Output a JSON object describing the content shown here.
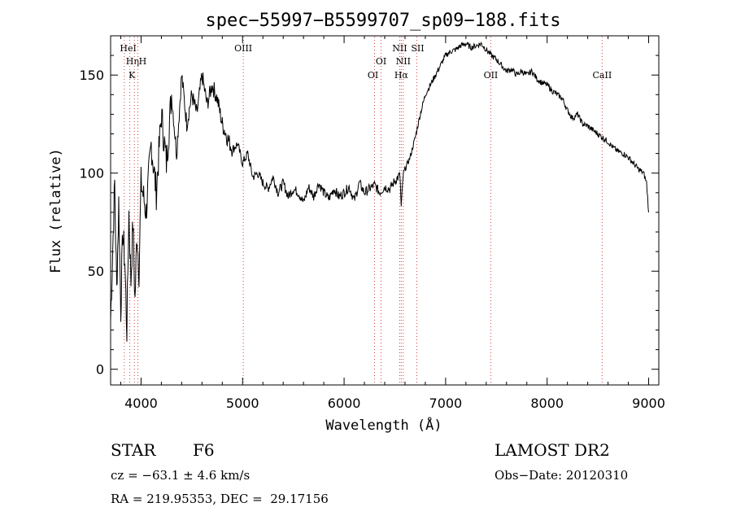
{
  "chart_data": {
    "type": "line",
    "title": "spec−55997−B5599707_sp09−188.fits",
    "xlabel": "Wavelength (Å)",
    "ylabel": "Flux (relative)",
    "xlim": [
      3700,
      9100
    ],
    "ylim": [
      -8,
      170
    ],
    "x_ticks": [
      4000,
      5000,
      6000,
      7000,
      8000,
      9000
    ],
    "x_tick_labels": [
      "4000",
      "5000",
      "6000",
      "7000",
      "8000",
      "9000"
    ],
    "y_ticks": [
      0,
      50,
      100,
      150
    ],
    "y_tick_labels": [
      "0",
      "50",
      "100",
      "150"
    ],
    "grid": false,
    "series": [
      {
        "color": "#000000",
        "x": [
          3700,
          3720,
          3740,
          3760,
          3780,
          3800,
          3820,
          3840,
          3860,
          3880,
          3900,
          3920,
          3940,
          3960,
          3980,
          4000,
          4050,
          4100,
          4150,
          4200,
          4250,
          4300,
          4350,
          4400,
          4450,
          4500,
          4550,
          4600,
          4650,
          4700,
          4750,
          4800,
          4850,
          4900,
          4950,
          5000,
          5050,
          5100,
          5150,
          5200,
          5250,
          5300,
          5350,
          5400,
          5450,
          5500,
          5550,
          5600,
          5650,
          5700,
          5750,
          5800,
          5850,
          5900,
          5950,
          6000,
          6050,
          6100,
          6150,
          6200,
          6250,
          6300,
          6350,
          6400,
          6450,
          6500,
          6550,
          6563,
          6580,
          6600,
          6650,
          6700,
          6750,
          6800,
          6850,
          6900,
          6950,
          7000,
          7050,
          7100,
          7150,
          7200,
          7250,
          7300,
          7350,
          7400,
          7450,
          7500,
          7550,
          7600,
          7650,
          7700,
          7750,
          7800,
          7850,
          7900,
          7950,
          8000,
          8050,
          8100,
          8150,
          8200,
          8250,
          8300,
          8350,
          8400,
          8450,
          8500,
          8550,
          8600,
          8650,
          8700,
          8750,
          8800,
          8850,
          8900,
          8950,
          8980,
          9000
        ],
        "y": [
          25,
          60,
          95,
          40,
          85,
          30,
          70,
          55,
          20,
          80,
          45,
          75,
          35,
          70,
          50,
          95,
          80,
          115,
          90,
          130,
          105,
          140,
          110,
          150,
          125,
          140,
          130,
          150,
          135,
          145,
          138,
          125,
          118,
          112,
          115,
          105,
          110,
          98,
          100,
          95,
          92,
          98,
          90,
          95,
          88,
          92,
          90,
          85,
          93,
          88,
          95,
          90,
          87,
          92,
          88,
          90,
          93,
          86,
          95,
          90,
          92,
          94,
          90,
          93,
          92,
          96,
          99,
          82,
          98,
          102,
          108,
          118,
          130,
          140,
          145,
          150,
          155,
          160,
          162,
          163,
          165,
          166,
          164,
          165,
          166,
          163,
          160,
          158,
          155,
          152,
          153,
          150,
          152,
          150,
          152,
          148,
          146,
          145,
          142,
          140,
          138,
          132,
          128,
          130,
          125,
          124,
          122,
          120,
          118,
          116,
          113,
          111,
          110,
          108,
          105,
          102,
          100,
          95,
          80
        ]
      }
    ],
    "line_markers": [
      {
        "x": 3835,
        "label": "Hη"
      },
      {
        "x": 3889,
        "label": "HeI"
      },
      {
        "x": 3934,
        "label": "K"
      },
      {
        "x": 3968,
        "label": "H"
      },
      {
        "x": 5007,
        "label": "OIII"
      },
      {
        "x": 6300,
        "label": "OI"
      },
      {
        "x": 6364,
        "label": "OI"
      },
      {
        "x": 6548,
        "label": "NII"
      },
      {
        "x": 6563,
        "label": "Hα"
      },
      {
        "x": 6583,
        "label": "NII"
      },
      {
        "x": 6716,
        "label": "SII"
      },
      {
        "x": 7445,
        "label": "OII"
      },
      {
        "x": 8542,
        "label": "CaII"
      }
    ]
  },
  "footer": {
    "object_type": "STAR",
    "subclass": "F6",
    "survey": "LAMOST DR2",
    "velocity": "cz = −63.1 ± 4.6 km/s",
    "obs_date": "Obs−Date: 20120310",
    "coords": "RA = 219.95353, DEC =  29.17156"
  }
}
